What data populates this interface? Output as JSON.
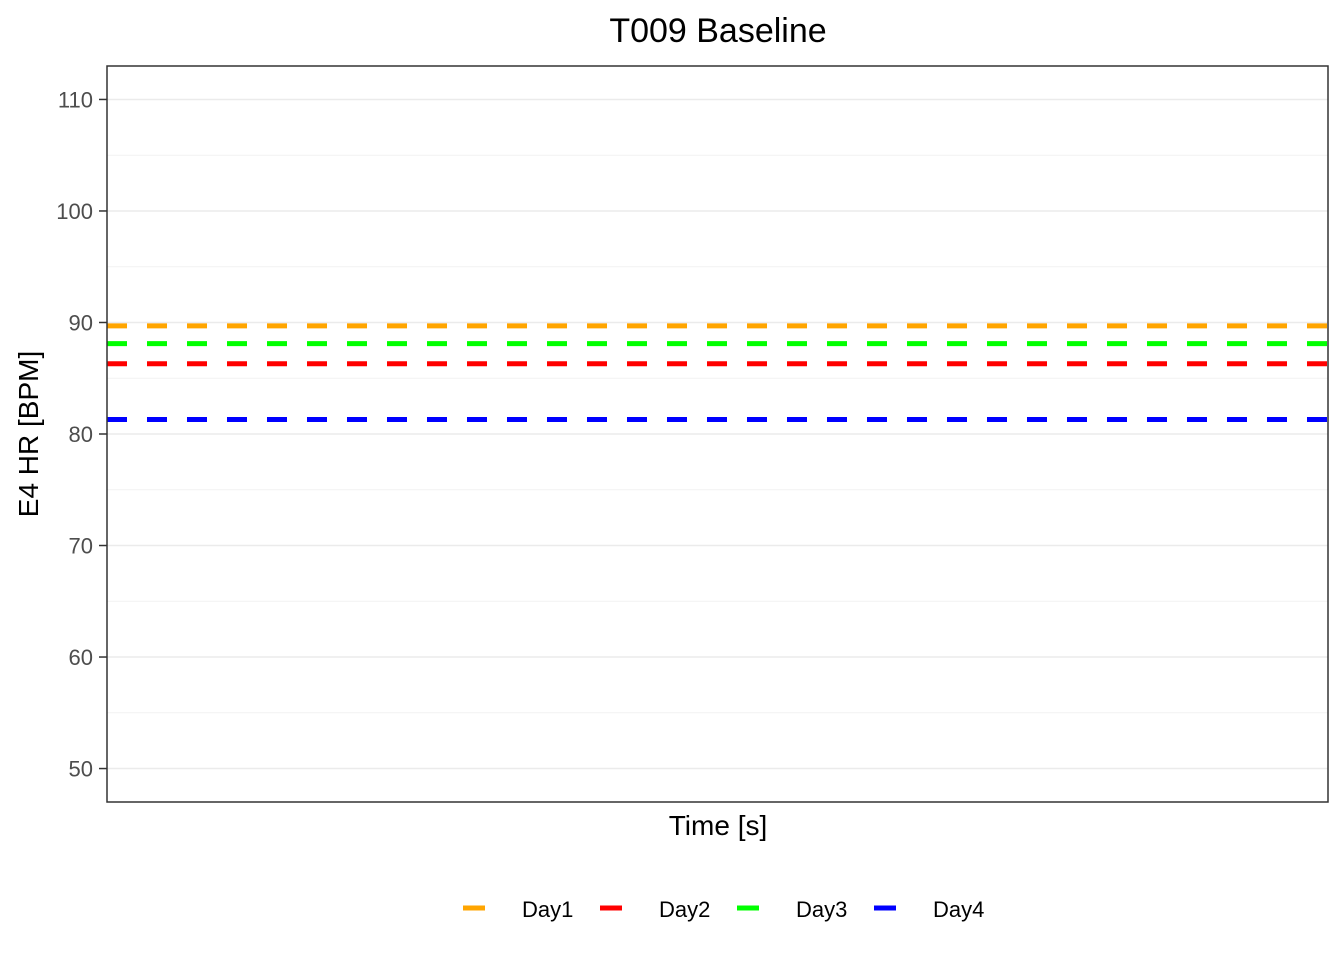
{
  "chart_data": {
    "type": "line",
    "title": "T009 Baseline",
    "xlabel": "Time [s]",
    "ylabel": "E4 HR [BPM]",
    "ylim": [
      47,
      113
    ],
    "yticks": [
      50,
      60,
      70,
      80,
      90,
      100,
      110
    ],
    "ytick_labels": [
      "50",
      "60",
      "70",
      "80",
      "90",
      "100",
      "110"
    ],
    "grid": true,
    "legend_position": "bottom",
    "line_style": "dashed",
    "series": [
      {
        "name": "Day1",
        "value": 89.7,
        "color": "#FFA500"
      },
      {
        "name": "Day2",
        "value": 86.3,
        "color": "#FF0000"
      },
      {
        "name": "Day3",
        "value": 88.1,
        "color": "#00FF00"
      },
      {
        "name": "Day4",
        "value": 81.3,
        "color": "#0000FF"
      }
    ]
  }
}
